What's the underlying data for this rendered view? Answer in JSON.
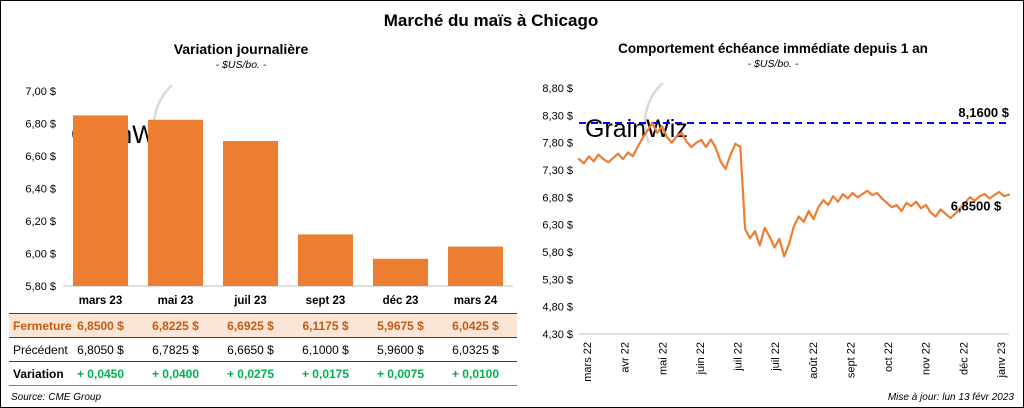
{
  "title": "Marché du maïs à Chicago",
  "left_chart": {
    "title": "Variation journalière",
    "subtitle": "- $US/bo. -"
  },
  "right_chart": {
    "title": "Comportement échéance immédiate depuis 1 an",
    "subtitle": "- $US/bo. -"
  },
  "watermark": "GrainWiz",
  "table": {
    "rows": [
      {
        "label": "Fermeture",
        "values": [
          "6,8500  $",
          "6,8225  $",
          "6,6925  $",
          "6,1175  $",
          "5,9675  $",
          "6,0425  $"
        ]
      },
      {
        "label": "Précédent",
        "values": [
          "6,8050  $",
          "6,7825  $",
          "6,6650  $",
          "6,1000  $",
          "5,9600  $",
          "6,0325  $"
        ]
      },
      {
        "label": "Variation",
        "values": [
          "+ 0,0450",
          "+ 0,0400",
          "+ 0,0275",
          "+ 0,0175",
          "+ 0,0075",
          "+ 0,0100"
        ]
      }
    ]
  },
  "footer": {
    "source": "Source: CME Group",
    "updated": "Mise à jour: lun 13 févr 2023"
  },
  "colors": {
    "orange": "#ED7D31",
    "orange_dark": "#C55A11",
    "peach": "#FBE5D6",
    "green": "#00B050",
    "blue": "#0000FF"
  },
  "chart_data": [
    {
      "type": "bar",
      "title": "Variation journalière",
      "subtitle": "- $US/bo. -",
      "categories": [
        "mars 23",
        "mai 23",
        "juil 23",
        "sept 23",
        "déc 23",
        "mars 24"
      ],
      "values": [
        6.85,
        6.8225,
        6.6925,
        6.1175,
        5.9675,
        6.0425
      ],
      "ylim": [
        5.8,
        7.0
      ],
      "ytick_step": 0.2,
      "ytick_labels": [
        "5,80 $",
        "6,00 $",
        "6,20 $",
        "6,40 $",
        "6,60 $",
        "6,80 $",
        "7,00 $"
      ],
      "bar_color": "#ED7D31",
      "grid": false,
      "legend": "none"
    },
    {
      "type": "line",
      "title": "Comportement échéance immédiate depuis 1 an",
      "subtitle": "- $US/bo. -",
      "x_labels": [
        "mars 22",
        "avr 22",
        "mai 22",
        "juin 22",
        "juil 22",
        "juil 22",
        "août 22",
        "sept 22",
        "oct 22",
        "nov 22",
        "déc 22",
        "janv 23"
      ],
      "values": [
        7.5,
        7.42,
        7.55,
        7.46,
        7.58,
        7.5,
        7.44,
        7.52,
        7.6,
        7.5,
        7.62,
        7.55,
        7.72,
        7.88,
        8.02,
        8.16,
        7.98,
        8.1,
        7.9,
        7.8,
        7.92,
        7.98,
        7.82,
        7.72,
        7.8,
        7.85,
        7.72,
        7.86,
        7.7,
        7.45,
        7.32,
        7.58,
        7.78,
        7.72,
        6.22,
        6.05,
        6.18,
        5.92,
        6.24,
        6.08,
        5.88,
        6.04,
        5.72,
        5.95,
        6.28,
        6.45,
        6.35,
        6.55,
        6.4,
        6.62,
        6.75,
        6.66,
        6.82,
        6.72,
        6.86,
        6.78,
        6.88,
        6.8,
        6.86,
        6.92,
        6.84,
        6.88,
        6.78,
        6.7,
        6.62,
        6.66,
        6.55,
        6.7,
        6.64,
        6.72,
        6.6,
        6.66,
        6.52,
        6.45,
        6.58,
        6.5,
        6.42,
        6.5,
        6.6,
        6.7,
        6.8,
        6.74,
        6.82,
        6.86,
        6.78,
        6.84,
        6.9,
        6.82,
        6.85
      ],
      "ylim": [
        4.3,
        8.8
      ],
      "ytick_step": 0.5,
      "ytick_labels": [
        "4,30 $",
        "4,80 $",
        "5,30 $",
        "5,80 $",
        "6,30 $",
        "6,80 $",
        "7,30 $",
        "7,80 $",
        "8,30 $",
        "8,80 $"
      ],
      "line_color": "#ED7D31",
      "reference_line": {
        "value": 8.16,
        "label": "8,1600 $",
        "color": "#0000FF",
        "style": "dashed"
      },
      "last_label": {
        "value": 6.85,
        "text": "6,8500 $"
      },
      "grid": false,
      "legend": "none"
    }
  ]
}
